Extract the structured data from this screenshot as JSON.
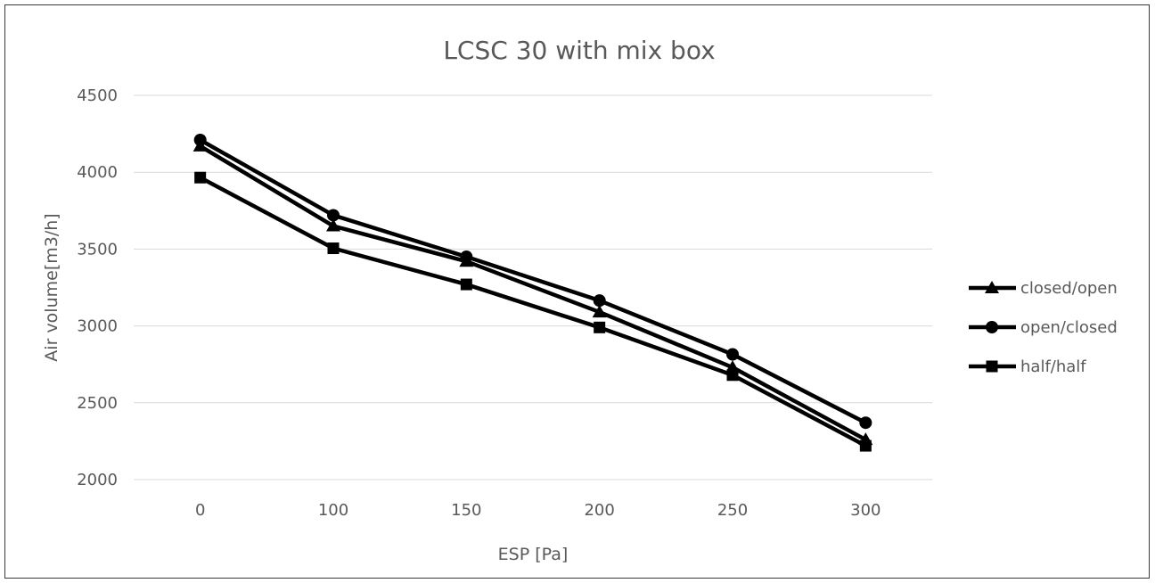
{
  "chart_data": {
    "type": "line",
    "title": "LCSC 30 with mix box",
    "xlabel": "ESP [Pa]",
    "ylabel": "Air volume[m3/h]",
    "categories": [
      "0",
      "100",
      "150",
      "200",
      "250",
      "300"
    ],
    "ylim": [
      2000,
      4500
    ],
    "yticks": [
      2000,
      2500,
      3000,
      3500,
      4000,
      4500
    ],
    "grid": true,
    "legend_position": "right",
    "series": [
      {
        "name": "closed/open",
        "marker": "triangle",
        "color": "#000000",
        "values": [
          4170,
          3650,
          3420,
          3090,
          2730,
          2260
        ]
      },
      {
        "name": "open/closed",
        "marker": "circle",
        "color": "#000000",
        "values": [
          4210,
          3720,
          3450,
          3165,
          2815,
          2370
        ]
      },
      {
        "name": "half/half",
        "marker": "square",
        "color": "#000000",
        "values": [
          3965,
          3505,
          3270,
          2990,
          2680,
          2220
        ]
      }
    ]
  }
}
